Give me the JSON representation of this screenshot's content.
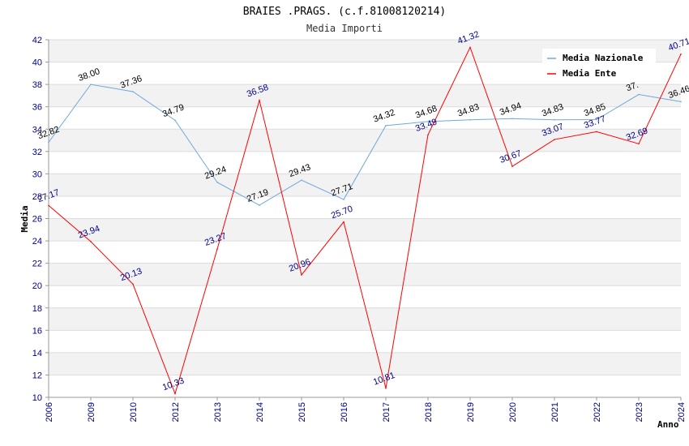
{
  "chart_data": {
    "type": "line",
    "title": "BRAIES .PRAGS. (c.f.81008120214)",
    "subtitle": "Media Importi",
    "xlabel": "Anno",
    "ylabel": "Media",
    "ylim": [
      10,
      42
    ],
    "ytick_step": 2,
    "categories": [
      "2006",
      "2009",
      "2010",
      "2012",
      "2013",
      "2014",
      "2015",
      "2016",
      "2017",
      "2018",
      "2019",
      "2020",
      "2021",
      "2022",
      "2023",
      "2024"
    ],
    "series": [
      {
        "name": "Media Nazionale",
        "color": "#6fa8dc",
        "values": [
          32.82,
          38.0,
          37.36,
          34.79,
          29.24,
          27.19,
          29.43,
          27.71,
          34.32,
          34.68,
          34.83,
          34.94,
          34.83,
          34.85,
          37.1,
          36.46
        ],
        "labels": [
          "32.82",
          "38.00",
          "37.36",
          "34.79",
          "29.24",
          "27.19",
          "29.43",
          "27.71",
          "34.32",
          "34.68",
          "34.83",
          "34.94",
          "34.83",
          "34.85",
          "37.",
          "36.46"
        ]
      },
      {
        "name": "Media Ente",
        "color": "#ff0000",
        "values": [
          27.17,
          23.94,
          20.13,
          10.33,
          23.27,
          36.58,
          20.96,
          25.7,
          10.81,
          33.49,
          41.32,
          30.67,
          33.07,
          33.77,
          32.69,
          40.71
        ],
        "labels": [
          "27.17",
          "23.94",
          "20.13",
          "10.33",
          "23.27",
          "36.58",
          "20.96",
          "25.70",
          "10.81",
          "33.49",
          "41.32",
          "30.67",
          "33.07",
          "33.77",
          "32.69",
          "40.71"
        ]
      }
    ],
    "grid": true,
    "legend_position": "top-right"
  }
}
